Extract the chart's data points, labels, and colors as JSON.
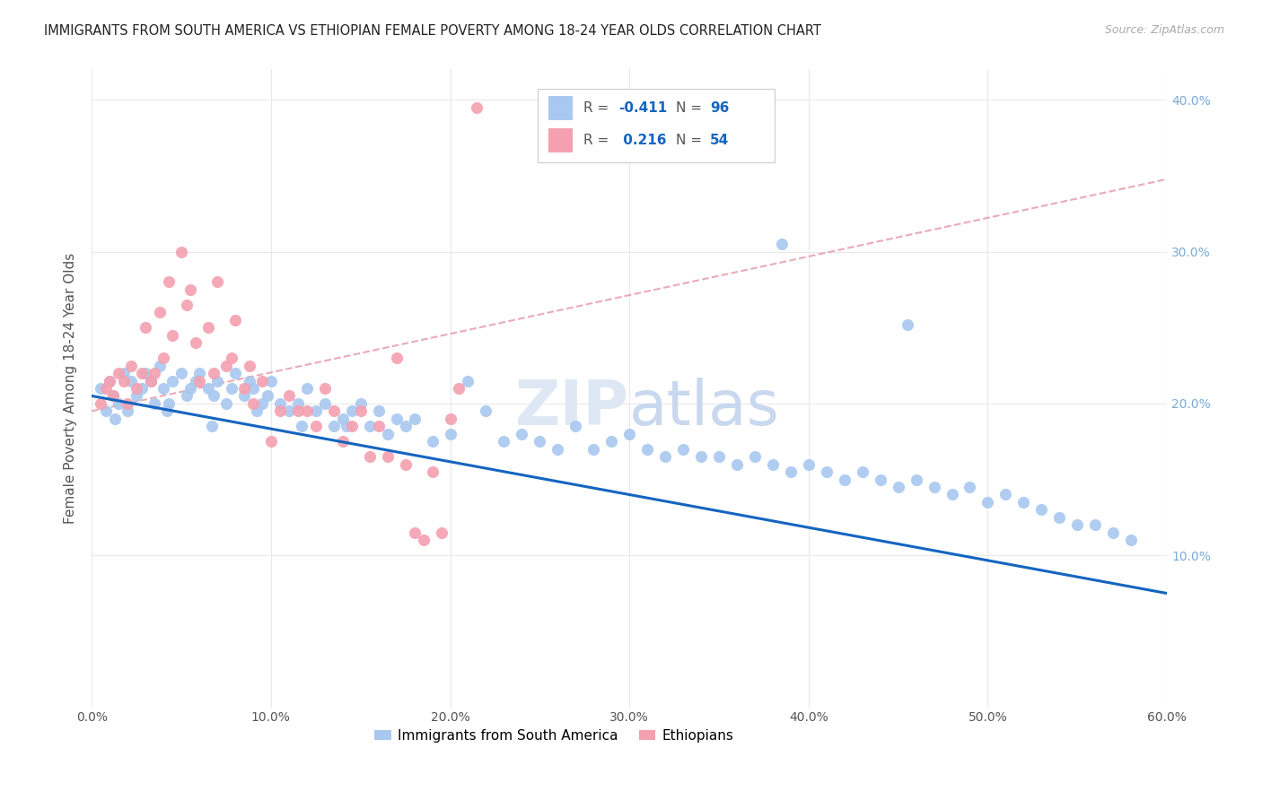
{
  "title": "IMMIGRANTS FROM SOUTH AMERICA VS ETHIOPIAN FEMALE POVERTY AMONG 18-24 YEAR OLDS CORRELATION CHART",
  "source": "Source: ZipAtlas.com",
  "ylabel": "Female Poverty Among 18-24 Year Olds",
  "xlim": [
    0.0,
    0.6
  ],
  "ylim": [
    0.0,
    0.42
  ],
  "xticks": [
    0.0,
    0.1,
    0.2,
    0.3,
    0.4,
    0.5,
    0.6
  ],
  "yticks": [
    0.1,
    0.2,
    0.3,
    0.4
  ],
  "xticklabels": [
    "0.0%",
    "10.0%",
    "20.0%",
    "30.0%",
    "40.0%",
    "50.0%",
    "60.0%"
  ],
  "yticklabels": [
    "10.0%",
    "20.0%",
    "30.0%",
    "40.0%"
  ],
  "blue_color": "#A8C8F0",
  "pink_color": "#F4A0B0",
  "blue_line_color": "#1565C0",
  "pink_line_color": "#E08898",
  "legend_r_blue": "-0.411",
  "legend_n_blue": "96",
  "legend_r_pink": "0.216",
  "legend_n_pink": "54",
  "background_color": "#ffffff",
  "grid_color": "#e8e8e8",
  "watermark": "ZIPatlas",
  "tick_color": "#7BAAD4",
  "label_color": "#555555",
  "blue_x": [
    0.005,
    0.008,
    0.01,
    0.012,
    0.015,
    0.018,
    0.02,
    0.022,
    0.025,
    0.028,
    0.03,
    0.033,
    0.035,
    0.038,
    0.04,
    0.043,
    0.045,
    0.05,
    0.053,
    0.055,
    0.058,
    0.06,
    0.065,
    0.068,
    0.07,
    0.075,
    0.078,
    0.08,
    0.085,
    0.088,
    0.09,
    0.095,
    0.098,
    0.1,
    0.105,
    0.11,
    0.115,
    0.12,
    0.125,
    0.13,
    0.135,
    0.14,
    0.145,
    0.15,
    0.155,
    0.16,
    0.165,
    0.17,
    0.175,
    0.18,
    0.19,
    0.2,
    0.21,
    0.22,
    0.23,
    0.24,
    0.25,
    0.26,
    0.27,
    0.28,
    0.29,
    0.3,
    0.31,
    0.32,
    0.33,
    0.34,
    0.35,
    0.36,
    0.37,
    0.38,
    0.39,
    0.4,
    0.41,
    0.42,
    0.43,
    0.44,
    0.45,
    0.46,
    0.47,
    0.48,
    0.49,
    0.5,
    0.51,
    0.52,
    0.53,
    0.54,
    0.55,
    0.56,
    0.57,
    0.58,
    0.013,
    0.042,
    0.067,
    0.092,
    0.117,
    0.142
  ],
  "blue_y": [
    0.21,
    0.195,
    0.215,
    0.205,
    0.2,
    0.22,
    0.195,
    0.215,
    0.205,
    0.21,
    0.22,
    0.215,
    0.2,
    0.225,
    0.21,
    0.2,
    0.215,
    0.22,
    0.205,
    0.21,
    0.215,
    0.22,
    0.21,
    0.205,
    0.215,
    0.2,
    0.21,
    0.22,
    0.205,
    0.215,
    0.21,
    0.2,
    0.205,
    0.215,
    0.2,
    0.195,
    0.2,
    0.21,
    0.195,
    0.2,
    0.185,
    0.19,
    0.195,
    0.2,
    0.185,
    0.195,
    0.18,
    0.19,
    0.185,
    0.19,
    0.175,
    0.18,
    0.215,
    0.195,
    0.175,
    0.18,
    0.175,
    0.17,
    0.185,
    0.17,
    0.175,
    0.18,
    0.17,
    0.165,
    0.17,
    0.165,
    0.165,
    0.16,
    0.165,
    0.16,
    0.155,
    0.16,
    0.155,
    0.15,
    0.155,
    0.15,
    0.145,
    0.15,
    0.145,
    0.14,
    0.145,
    0.135,
    0.14,
    0.135,
    0.13,
    0.125,
    0.12,
    0.12,
    0.115,
    0.11,
    0.19,
    0.195,
    0.185,
    0.195,
    0.185,
    0.185
  ],
  "pink_x": [
    0.005,
    0.008,
    0.01,
    0.012,
    0.015,
    0.018,
    0.02,
    0.022,
    0.025,
    0.028,
    0.03,
    0.033,
    0.035,
    0.038,
    0.04,
    0.043,
    0.045,
    0.05,
    0.053,
    0.055,
    0.058,
    0.06,
    0.065,
    0.068,
    0.07,
    0.075,
    0.078,
    0.08,
    0.085,
    0.088,
    0.09,
    0.095,
    0.1,
    0.105,
    0.11,
    0.115,
    0.12,
    0.125,
    0.13,
    0.135,
    0.14,
    0.145,
    0.15,
    0.155,
    0.16,
    0.165,
    0.17,
    0.175,
    0.18,
    0.185,
    0.19,
    0.195,
    0.2,
    0.205
  ],
  "pink_y": [
    0.2,
    0.21,
    0.215,
    0.205,
    0.22,
    0.215,
    0.2,
    0.225,
    0.21,
    0.22,
    0.25,
    0.215,
    0.22,
    0.26,
    0.23,
    0.28,
    0.245,
    0.3,
    0.265,
    0.275,
    0.24,
    0.215,
    0.25,
    0.22,
    0.28,
    0.225,
    0.23,
    0.255,
    0.21,
    0.225,
    0.2,
    0.215,
    0.175,
    0.195,
    0.205,
    0.195,
    0.195,
    0.185,
    0.21,
    0.195,
    0.175,
    0.185,
    0.195,
    0.165,
    0.185,
    0.165,
    0.23,
    0.16,
    0.115,
    0.11,
    0.155,
    0.115,
    0.19,
    0.21
  ],
  "blue_line_x0": 0.0,
  "blue_line_x1": 0.6,
  "blue_line_y0": 0.205,
  "blue_line_y1": 0.075,
  "pink_line_x0": 0.0,
  "pink_line_x1": 0.275,
  "pink_line_y0": 0.195,
  "pink_line_y1": 0.265,
  "special_blue_points": [
    [
      0.385,
      0.305
    ],
    [
      0.455,
      0.252
    ]
  ],
  "special_pink_point": [
    0.215,
    0.395
  ]
}
